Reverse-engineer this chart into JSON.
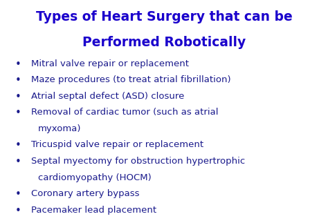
{
  "title_line1": "Types of Heart Surgery that can be",
  "title_line2": "Performed Robotically",
  "title_color": "#1a00cc",
  "title_fontsize": 13.5,
  "title_fontweight": "bold",
  "bullet_color": "#1a1a8c",
  "bullet_fontsize": 9.5,
  "background_color": "#ffffff",
  "figwidth": 4.74,
  "figheight": 3.23,
  "dpi": 100,
  "bullets": [
    [
      "Mitral valve repair or replacement",
      false
    ],
    [
      "Maze procedures (to treat atrial fibrillation)",
      false
    ],
    [
      "Atrial septal defect (ASD) closure",
      false
    ],
    [
      "Removal of cardiac tumor (such as atrial",
      true
    ],
    [
      "myxoma)",
      false
    ],
    [
      "Tricuspid valve repair or replacement",
      false
    ],
    [
      "Septal myectomy for obstruction hypertrophic",
      true
    ],
    [
      "cardiomyopathy (HOCM)",
      false
    ],
    [
      "Coronary artery bypass",
      false
    ],
    [
      "Pacemaker lead placement",
      false
    ]
  ]
}
